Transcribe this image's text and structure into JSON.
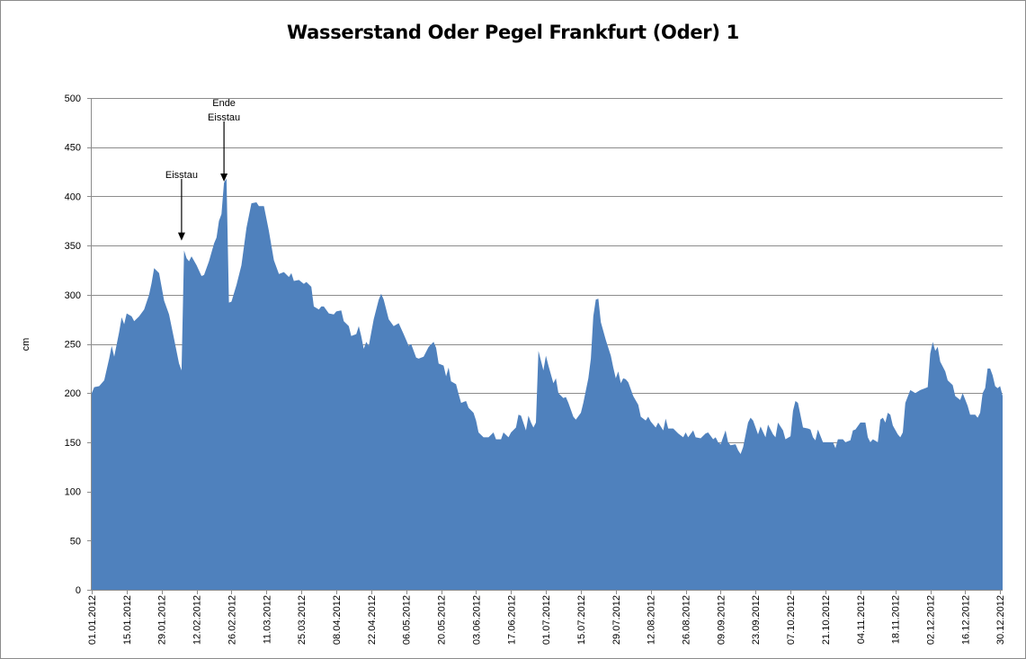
{
  "chart_data": {
    "type": "area",
    "title": "Wasserstand Oder Pegel Frankfurt (Oder) 1",
    "xlabel": "",
    "ylabel": "cm",
    "ylim": [
      0,
      500
    ],
    "yticks": [
      0,
      50,
      100,
      150,
      200,
      250,
      300,
      350,
      400,
      450,
      500
    ],
    "grid": true,
    "legend": "none",
    "x_tick_labels": [
      "01.01.2012",
      "15.01.2012",
      "29.01.2012",
      "12.02.2012",
      "26.02.2012",
      "11.03.2012",
      "25.03.2012",
      "08.04.2012",
      "22.04.2012",
      "06.05.2012",
      "20.05.2012",
      "03.06.2012",
      "17.06.2012",
      "01.07.2012",
      "15.07.2012",
      "29.07.2012",
      "12.08.2012",
      "26.08.2012",
      "09.09.2012",
      "23.09.2012",
      "07.10.2012",
      "21.10.2012",
      "04.11.2012",
      "18.11.2012",
      "02.12.2012",
      "16.12.2012",
      "30.12.2012"
    ],
    "series": [
      {
        "color": "#4f81bd",
        "points": [
          [
            "2012-01-01",
            200
          ],
          [
            "2012-01-02",
            206
          ],
          [
            "2012-01-04",
            207
          ],
          [
            "2012-01-06",
            213
          ],
          [
            "2012-01-08",
            235
          ],
          [
            "2012-01-09",
            248
          ],
          [
            "2012-01-10",
            237
          ],
          [
            "2012-01-12",
            262
          ],
          [
            "2012-01-13",
            277
          ],
          [
            "2012-01-14",
            270
          ],
          [
            "2012-01-15",
            281
          ],
          [
            "2012-01-17",
            278
          ],
          [
            "2012-01-18",
            273
          ],
          [
            "2012-01-20",
            278
          ],
          [
            "2012-01-22",
            285
          ],
          [
            "2012-01-24",
            300
          ],
          [
            "2012-01-25",
            312
          ],
          [
            "2012-01-26",
            327
          ],
          [
            "2012-01-28",
            322
          ],
          [
            "2012-01-30",
            294
          ],
          [
            "2012-02-01",
            280
          ],
          [
            "2012-02-03",
            255
          ],
          [
            "2012-02-05",
            230
          ],
          [
            "2012-02-06",
            223
          ],
          [
            "2012-02-07",
            345
          ],
          [
            "2012-02-08",
            337
          ],
          [
            "2012-02-09",
            334
          ],
          [
            "2012-02-10",
            339
          ],
          [
            "2012-02-12",
            330
          ],
          [
            "2012-02-14",
            319
          ],
          [
            "2012-02-15",
            320
          ],
          [
            "2012-02-17",
            334
          ],
          [
            "2012-02-19",
            352
          ],
          [
            "2012-02-20",
            358
          ],
          [
            "2012-02-21",
            375
          ],
          [
            "2012-02-22",
            382
          ],
          [
            "2012-02-23",
            414
          ],
          [
            "2012-02-24",
            418
          ],
          [
            "2012-02-25",
            292
          ],
          [
            "2012-02-26",
            293
          ],
          [
            "2012-02-28",
            310
          ],
          [
            "2012-03-01",
            330
          ],
          [
            "2012-03-03",
            368
          ],
          [
            "2012-03-05",
            393
          ],
          [
            "2012-03-07",
            394
          ],
          [
            "2012-03-08",
            390
          ],
          [
            "2012-03-10",
            390
          ],
          [
            "2012-03-12",
            365
          ],
          [
            "2012-03-14",
            335
          ],
          [
            "2012-03-16",
            321
          ],
          [
            "2012-03-18",
            323
          ],
          [
            "2012-03-20",
            318
          ],
          [
            "2012-03-21",
            322
          ],
          [
            "2012-03-22",
            314
          ],
          [
            "2012-03-24",
            315
          ],
          [
            "2012-03-26",
            311
          ],
          [
            "2012-03-27",
            313
          ],
          [
            "2012-03-29",
            308
          ],
          [
            "2012-03-30",
            288
          ],
          [
            "2012-04-01",
            285
          ],
          [
            "2012-04-02",
            288
          ],
          [
            "2012-04-03",
            288
          ],
          [
            "2012-04-05",
            281
          ],
          [
            "2012-04-07",
            280
          ],
          [
            "2012-04-08",
            283
          ],
          [
            "2012-04-10",
            284
          ],
          [
            "2012-04-11",
            273
          ],
          [
            "2012-04-13",
            268
          ],
          [
            "2012-04-14",
            258
          ],
          [
            "2012-04-16",
            260
          ],
          [
            "2012-04-17",
            268
          ],
          [
            "2012-04-18",
            258
          ],
          [
            "2012-04-19",
            245
          ],
          [
            "2012-04-20",
            252
          ],
          [
            "2012-04-21",
            248
          ],
          [
            "2012-04-23",
            275
          ],
          [
            "2012-04-25",
            295
          ],
          [
            "2012-04-26",
            301
          ],
          [
            "2012-04-27",
            295
          ],
          [
            "2012-04-29",
            275
          ],
          [
            "2012-05-01",
            268
          ],
          [
            "2012-05-03",
            271
          ],
          [
            "2012-05-05",
            260
          ],
          [
            "2012-05-07",
            248
          ],
          [
            "2012-05-08",
            250
          ],
          [
            "2012-05-10",
            236
          ],
          [
            "2012-05-11",
            235
          ],
          [
            "2012-05-13",
            237
          ],
          [
            "2012-05-15",
            247
          ],
          [
            "2012-05-17",
            252
          ],
          [
            "2012-05-18",
            246
          ],
          [
            "2012-05-19",
            230
          ],
          [
            "2012-05-21",
            228
          ],
          [
            "2012-05-22",
            217
          ],
          [
            "2012-05-23",
            226
          ],
          [
            "2012-05-24",
            212
          ],
          [
            "2012-05-26",
            209
          ],
          [
            "2012-05-27",
            199
          ],
          [
            "2012-05-28",
            190
          ],
          [
            "2012-05-30",
            192
          ],
          [
            "2012-05-31",
            185
          ],
          [
            "2012-06-02",
            180
          ],
          [
            "2012-06-03",
            172
          ],
          [
            "2012-06-04",
            160
          ],
          [
            "2012-06-06",
            155
          ],
          [
            "2012-06-08",
            155
          ],
          [
            "2012-06-10",
            160
          ],
          [
            "2012-06-11",
            153
          ],
          [
            "2012-06-13",
            153
          ],
          [
            "2012-06-14",
            160
          ],
          [
            "2012-06-16",
            155
          ],
          [
            "2012-06-17",
            160
          ],
          [
            "2012-06-19",
            165
          ],
          [
            "2012-06-20",
            178
          ],
          [
            "2012-06-21",
            177
          ],
          [
            "2012-06-23",
            162
          ],
          [
            "2012-06-24",
            177
          ],
          [
            "2012-06-25",
            170
          ],
          [
            "2012-06-26",
            165
          ],
          [
            "2012-06-27",
            170
          ],
          [
            "2012-06-28",
            243
          ],
          [
            "2012-06-30",
            223
          ],
          [
            "2012-07-01",
            238
          ],
          [
            "2012-07-02",
            228
          ],
          [
            "2012-07-04",
            210
          ],
          [
            "2012-07-05",
            215
          ],
          [
            "2012-07-06",
            200
          ],
          [
            "2012-07-08",
            195
          ],
          [
            "2012-07-09",
            196
          ],
          [
            "2012-07-10",
            190
          ],
          [
            "2012-07-12",
            176
          ],
          [
            "2012-07-13",
            173
          ],
          [
            "2012-07-15",
            180
          ],
          [
            "2012-07-16",
            190
          ],
          [
            "2012-07-18",
            215
          ],
          [
            "2012-07-19",
            235
          ],
          [
            "2012-07-20",
            278
          ],
          [
            "2012-07-21",
            295
          ],
          [
            "2012-07-22",
            296
          ],
          [
            "2012-07-23",
            272
          ],
          [
            "2012-07-25",
            254
          ],
          [
            "2012-07-27",
            238
          ],
          [
            "2012-07-28",
            226
          ],
          [
            "2012-07-29",
            215
          ],
          [
            "2012-07-30",
            222
          ],
          [
            "2012-07-31",
            210
          ],
          [
            "2012-08-01",
            215
          ],
          [
            "2012-08-02",
            214
          ],
          [
            "2012-08-03",
            211
          ],
          [
            "2012-08-05",
            197
          ],
          [
            "2012-08-07",
            188
          ],
          [
            "2012-08-08",
            176
          ],
          [
            "2012-08-10",
            172
          ],
          [
            "2012-08-11",
            176
          ],
          [
            "2012-08-12",
            171
          ],
          [
            "2012-08-14",
            165
          ],
          [
            "2012-08-15",
            170
          ],
          [
            "2012-08-17",
            162
          ],
          [
            "2012-08-18",
            174
          ],
          [
            "2012-08-19",
            164
          ],
          [
            "2012-08-21",
            164
          ],
          [
            "2012-08-23",
            159
          ],
          [
            "2012-08-25",
            155
          ],
          [
            "2012-08-26",
            160
          ],
          [
            "2012-08-27",
            155
          ],
          [
            "2012-08-29",
            162
          ],
          [
            "2012-08-30",
            155
          ],
          [
            "2012-09-01",
            154
          ],
          [
            "2012-09-03",
            159
          ],
          [
            "2012-09-04",
            160
          ],
          [
            "2012-09-06",
            153
          ],
          [
            "2012-09-07",
            155
          ],
          [
            "2012-09-08",
            150
          ],
          [
            "2012-09-09",
            148
          ],
          [
            "2012-09-11",
            162
          ],
          [
            "2012-09-12",
            150
          ],
          [
            "2012-09-13",
            147
          ],
          [
            "2012-09-15",
            148
          ],
          [
            "2012-09-16",
            142
          ],
          [
            "2012-09-17",
            138
          ],
          [
            "2012-09-18",
            145
          ],
          [
            "2012-09-20",
            170
          ],
          [
            "2012-09-21",
            175
          ],
          [
            "2012-09-22",
            172
          ],
          [
            "2012-09-24",
            158
          ],
          [
            "2012-09-25",
            166
          ],
          [
            "2012-09-27",
            155
          ],
          [
            "2012-09-28",
            168
          ],
          [
            "2012-09-30",
            158
          ],
          [
            "2012-10-01",
            155
          ],
          [
            "2012-10-02",
            170
          ],
          [
            "2012-10-04",
            162
          ],
          [
            "2012-10-05",
            153
          ],
          [
            "2012-10-07",
            156
          ],
          [
            "2012-10-08",
            182
          ],
          [
            "2012-10-09",
            192
          ],
          [
            "2012-10-10",
            190
          ],
          [
            "2012-10-12",
            165
          ],
          [
            "2012-10-14",
            164
          ],
          [
            "2012-10-15",
            163
          ],
          [
            "2012-10-16",
            155
          ],
          [
            "2012-10-17",
            152
          ],
          [
            "2012-10-18",
            163
          ],
          [
            "2012-10-20",
            150
          ],
          [
            "2012-10-22",
            150
          ],
          [
            "2012-10-24",
            150
          ],
          [
            "2012-10-25",
            144
          ],
          [
            "2012-10-26",
            153
          ],
          [
            "2012-10-28",
            153
          ],
          [
            "2012-10-29",
            150
          ],
          [
            "2012-10-31",
            152
          ],
          [
            "2012-11-01",
            162
          ],
          [
            "2012-11-02",
            163
          ],
          [
            "2012-11-04",
            170
          ],
          [
            "2012-11-06",
            170
          ],
          [
            "2012-11-07",
            155
          ],
          [
            "2012-11-08",
            150
          ],
          [
            "2012-11-09",
            153
          ],
          [
            "2012-11-11",
            150
          ],
          [
            "2012-11-12",
            173
          ],
          [
            "2012-11-13",
            175
          ],
          [
            "2012-11-14",
            170
          ],
          [
            "2012-11-15",
            180
          ],
          [
            "2012-11-16",
            178
          ],
          [
            "2012-11-17",
            167
          ],
          [
            "2012-11-19",
            158
          ],
          [
            "2012-11-20",
            155
          ],
          [
            "2012-11-21",
            160
          ],
          [
            "2012-11-22",
            190
          ],
          [
            "2012-11-24",
            203
          ],
          [
            "2012-11-26",
            200
          ],
          [
            "2012-11-28",
            203
          ],
          [
            "2012-11-30",
            205
          ],
          [
            "2012-12-01",
            206
          ],
          [
            "2012-12-02",
            240
          ],
          [
            "2012-12-03",
            252
          ],
          [
            "2012-12-04",
            243
          ],
          [
            "2012-12-05",
            247
          ],
          [
            "2012-12-06",
            232
          ],
          [
            "2012-12-08",
            222
          ],
          [
            "2012-12-09",
            213
          ],
          [
            "2012-12-11",
            208
          ],
          [
            "2012-12-12",
            197
          ],
          [
            "2012-12-14",
            193
          ],
          [
            "2012-12-15",
            200
          ],
          [
            "2012-12-17",
            187
          ],
          [
            "2012-12-18",
            178
          ],
          [
            "2012-12-20",
            178
          ],
          [
            "2012-12-21",
            175
          ],
          [
            "2012-12-22",
            180
          ],
          [
            "2012-12-23",
            200
          ],
          [
            "2012-12-24",
            205
          ],
          [
            "2012-12-25",
            225
          ],
          [
            "2012-12-26",
            225
          ],
          [
            "2012-12-27",
            218
          ],
          [
            "2012-12-28",
            207
          ],
          [
            "2012-12-29",
            205
          ],
          [
            "2012-12-30",
            207
          ],
          [
            "2012-12-31",
            197
          ]
        ]
      }
    ],
    "annotations": [
      {
        "lines": [
          "Eisstau"
        ],
        "date": "2012-02-06",
        "y": 355
      },
      {
        "lines": [
          "Ende",
          "Eisstau"
        ],
        "date": "2012-02-23",
        "y": 415
      }
    ]
  }
}
